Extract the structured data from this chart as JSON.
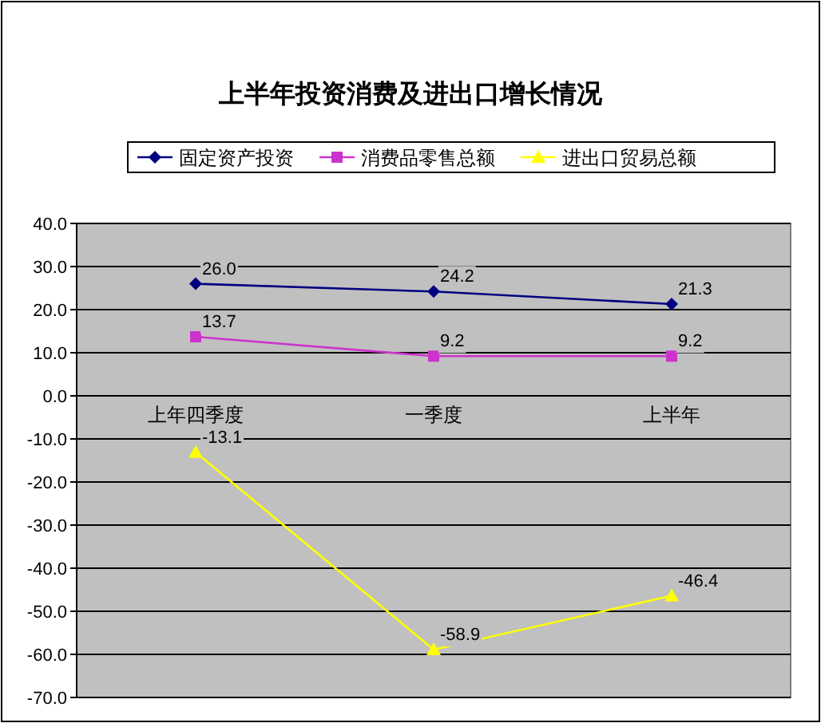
{
  "chart_data": {
    "type": "line",
    "title": "上半年投资消费及进出口增长情况",
    "categories": [
      "上年四季度",
      "一季度",
      "上半年"
    ],
    "series": [
      {
        "name": "固定资产投资",
        "color": "#000080",
        "marker": "diamond",
        "values": [
          26.0,
          24.2,
          21.3
        ],
        "value_labels": [
          "26.0",
          "24.2",
          "21.3"
        ]
      },
      {
        "name": "消费品零售总额",
        "color": "#cc33cc",
        "marker": "square",
        "values": [
          13.7,
          9.2,
          9.2
        ],
        "value_labels": [
          "13.7",
          "9.2",
          "9.2"
        ]
      },
      {
        "name": "进出口贸易总额",
        "color": "#ffff00",
        "marker": "triangle",
        "values": [
          -13.1,
          -58.9,
          -46.4
        ],
        "value_labels": [
          "-13.1",
          "-58.9",
          "-46.4"
        ]
      }
    ],
    "ylim": [
      -70,
      40
    ],
    "yticks": [
      {
        "value": 40,
        "label": "40.0"
      },
      {
        "value": 30,
        "label": "30.0"
      },
      {
        "value": 20,
        "label": "20.0"
      },
      {
        "value": 10,
        "label": "10.0"
      },
      {
        "value": 0,
        "label": "0.0"
      },
      {
        "value": -10,
        "label": "-10.0"
      },
      {
        "value": -20,
        "label": "-20.0"
      },
      {
        "value": -30,
        "label": "-30.0"
      },
      {
        "value": -40,
        "label": "-40.0"
      },
      {
        "value": -50,
        "label": "-50.0"
      },
      {
        "value": -60,
        "label": "-60.0"
      },
      {
        "value": -70,
        "label": "-70.0"
      }
    ],
    "grid": "y",
    "legend": "top"
  }
}
